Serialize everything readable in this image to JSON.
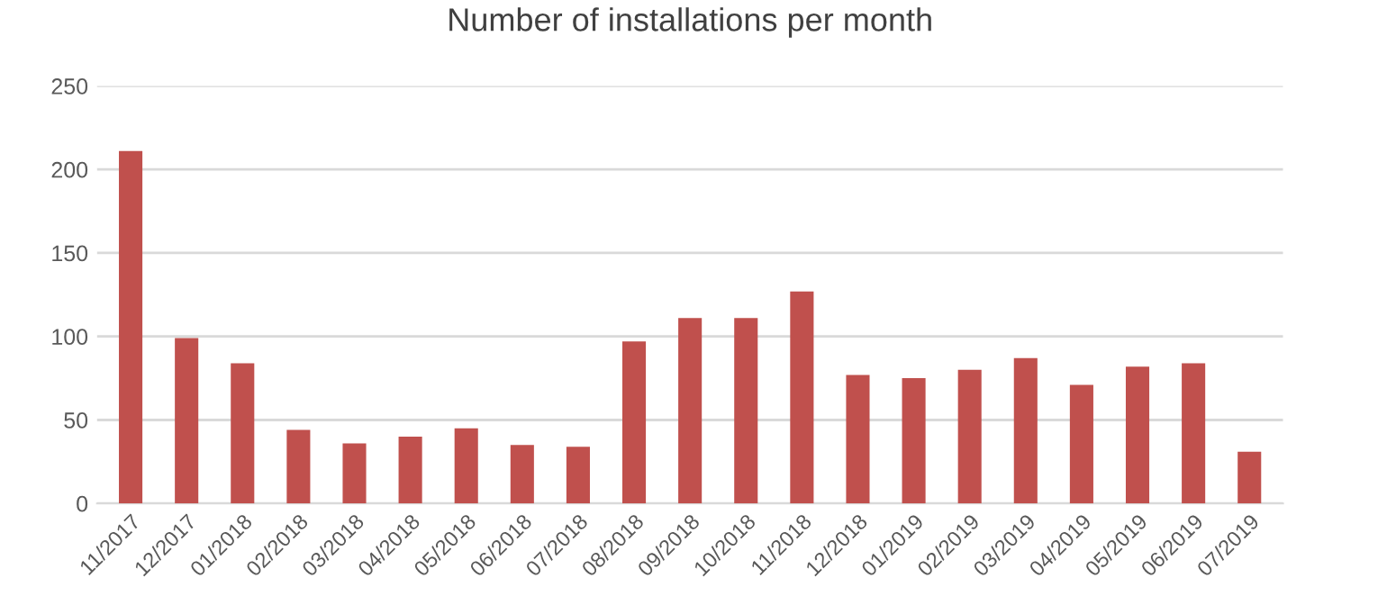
{
  "chart_data": {
    "type": "bar",
    "title": "Number of installations per month",
    "categories": [
      "11/2017",
      "12/2017",
      "01/2018",
      "02/2018",
      "03/2018",
      "04/2018",
      "05/2018",
      "06/2018",
      "07/2018",
      "08/2018",
      "09/2018",
      "10/2018",
      "11/2018",
      "12/2018",
      "01/2019",
      "02/2019",
      "03/2019",
      "04/2019",
      "05/2019",
      "06/2019",
      "07/2019"
    ],
    "values": [
      211,
      99,
      84,
      44,
      36,
      40,
      45,
      35,
      34,
      97,
      111,
      111,
      127,
      77,
      75,
      80,
      87,
      71,
      82,
      84,
      31
    ],
    "color": "#c0504d",
    "ylim": [
      0,
      250
    ],
    "yticks": [
      0,
      50,
      100,
      150,
      200,
      250
    ],
    "grid": "y"
  }
}
